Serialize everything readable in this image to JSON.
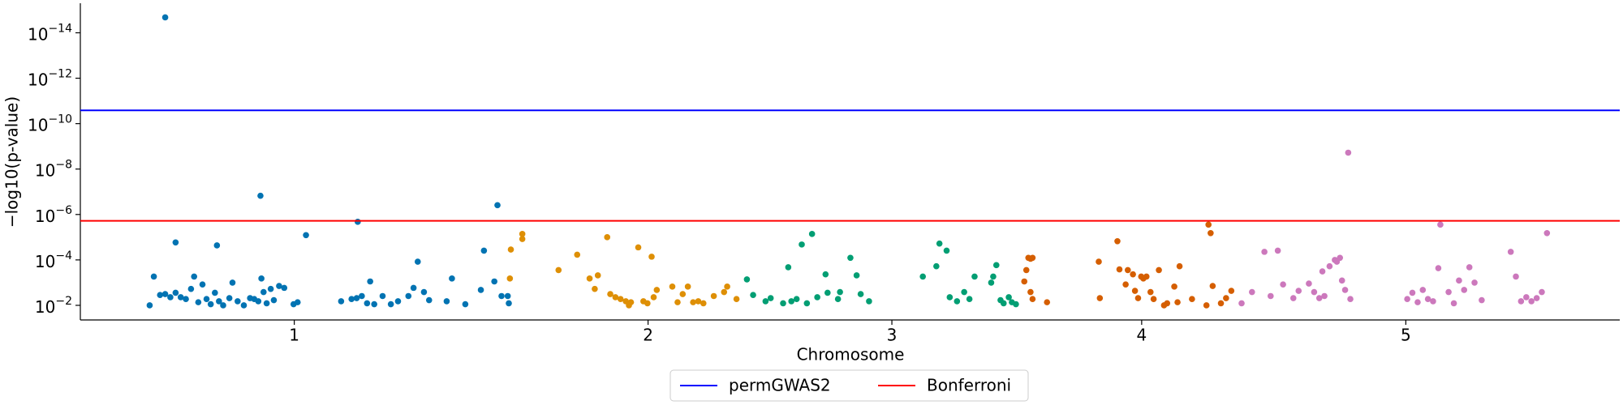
{
  "chart_data": {
    "type": "scatter",
    "x_label": "Chromosome",
    "y_label": "−log10(p-value)",
    "y_scale": "log",
    "y_inverted": true,
    "grid": false,
    "legend": "below",
    "xlim": [
      -5.8,
      123.0
    ],
    "ylim": [
      0.044,
      5e-16
    ],
    "xticks": [
      {
        "value": 12.1,
        "label": "1"
      },
      {
        "value": 41.7,
        "label": "2"
      },
      {
        "value": 62.1,
        "label": "3"
      },
      {
        "value": 83.0,
        "label": "4"
      },
      {
        "value": 105.1,
        "label": "5"
      }
    ],
    "yticks": [
      {
        "value": 0.01,
        "label": "10−2"
      },
      {
        "value": 0.0001,
        "label": "10−4"
      },
      {
        "value": 1e-06,
        "label": "10−6"
      },
      {
        "value": 1e-08,
        "label": "10−8"
      },
      {
        "value": 1e-10,
        "label": "10−10"
      },
      {
        "value": 1e-12,
        "label": "10−12"
      },
      {
        "value": 1e-14,
        "label": "10−14"
      }
    ],
    "hlines": [
      {
        "name": "permGWAS2",
        "color": "#0000ff",
        "value": 2.6e-11
      },
      {
        "name": "Bonferroni",
        "color": "#ff0000",
        "value": 1.9e-06
      }
    ],
    "series": [
      {
        "color": "#0173b2",
        "x": [
          0,
          0.35,
          0.87,
          1.3,
          1.73,
          2.17,
          1.3,
          2.17,
          2.6,
          3.03,
          3.46,
          3.72,
          4.07,
          4.42,
          4.76,
          5.11,
          5.46,
          5.63,
          5.8,
          6.15,
          6.67,
          6.93,
          7.36,
          7.88,
          8.4,
          8.75,
          9.09,
          9.27,
          9.35,
          9.53,
          9.79,
          10.13,
          10.39,
          10.83,
          11.26,
          12.04,
          12.38,
          13.08,
          16.02,
          16.89,
          17.32,
          17.41,
          17.75,
          18.19,
          18.45,
          18.79,
          19.49,
          20.18,
          20.78,
          21.65,
          22.08,
          22.43,
          22.95,
          23.38,
          24.85,
          25.29,
          26.41,
          27.71,
          27.97,
          28.84,
          29.1,
          29.44,
          30.05,
          29.96
        ],
        "values": [
          0.01,
          0.00054,
          0.0035,
          0.0032,
          0.0044,
          0.0028,
          2.1e-15,
          1.7e-05,
          0.0044,
          0.0053,
          0.0019,
          0.00054,
          0.0073,
          0.0012,
          0.0053,
          0.0089,
          0.0028,
          2.3e-05,
          0.0066,
          0.01,
          0.0048,
          0.001,
          0.0066,
          0.01,
          0.0048,
          0.0053,
          0.0066,
          1.5e-07,
          0.00066,
          0.0026,
          0.0081,
          0.0019,
          0.0059,
          0.0014,
          0.0017,
          0.0089,
          0.0073,
          8.1e-06,
          0.0066,
          0.0053,
          0.0048,
          2.1e-06,
          0.0039,
          0.0081,
          0.00089,
          0.0089,
          0.0039,
          0.0089,
          0.0066,
          0.0039,
          0.0017,
          0.00012,
          0.0026,
          0.0059,
          0.0066,
          0.00066,
          0.0089,
          0.0021,
          3.9e-05,
          0.00089,
          3.9e-07,
          0.0039,
          0.0081,
          0.0039
        ]
      },
      {
        "color": "#de8f05",
        "x": [
          30.14,
          30.22,
          31.18,
          31.18,
          34.21,
          35.77,
          36.81,
          37.24,
          37.5,
          38.28,
          38.54,
          38.97,
          39.4,
          39.84,
          40.1,
          40.27,
          40.88,
          41.31,
          41.65,
          42.0,
          42.17,
          42.43,
          43.73,
          44.17,
          44.6,
          45.03,
          45.47,
          45.9,
          46.33,
          47.2,
          48.06,
          48.32,
          49.1
        ],
        "values": [
          0.00066,
          3.5e-05,
          1.2e-05,
          7.2e-06,
          0.00028,
          5.9e-05,
          0.00066,
          0.0019,
          0.00048,
          1e-05,
          0.0032,
          0.0044,
          0.0053,
          0.0066,
          0.01,
          0.0073,
          2.8e-05,
          0.0066,
          0.0081,
          7.2e-05,
          0.0044,
          0.0021,
          0.0015,
          0.0073,
          0.0032,
          0.0015,
          0.0073,
          0.0066,
          0.0081,
          0.0039,
          0.0026,
          0.0015,
          0.0053
        ]
      },
      {
        "color": "#029e73",
        "x": [
          49.97,
          50.49,
          51.53,
          51.96,
          53.0,
          53.43,
          53.69,
          54.13,
          54.56,
          55.42,
          54.99,
          55.86,
          56.55,
          56.72,
          57.59,
          57.76,
          58.63,
          59.15,
          59.49,
          60.19,
          64.69,
          65.82,
          66.08,
          66.68,
          66.94,
          67.55,
          68.15,
          68.59,
          69.02,
          70.41,
          70.58,
          70.84,
          71.19,
          71.45,
          71.88,
          72.14,
          72.48
        ],
        "values": [
          0.00072,
          0.0035,
          0.0066,
          0.0048,
          0.0081,
          0.00021,
          0.0066,
          0.0053,
          2.1e-05,
          7.2e-06,
          0.0081,
          0.0044,
          0.00043,
          0.0028,
          0.0053,
          0.0026,
          8.1e-05,
          0.00048,
          0.0032,
          0.0066,
          0.00054,
          0.00019,
          1.9e-05,
          3.9e-05,
          0.0044,
          0.0066,
          0.0026,
          0.0053,
          0.00054,
          0.001,
          0.00054,
          0.00017,
          0.0059,
          0.0081,
          0.0044,
          0.0073,
          0.0089
        ]
      },
      {
        "color": "#d55e00",
        "x": [
          73.18,
          73.35,
          73.52,
          73.7,
          73.87,
          73.7,
          73.87,
          75.08,
          79.41,
          79.5,
          80.97,
          81.14,
          81.66,
          81.84,
          82.27,
          82.44,
          82.7,
          82.96,
          83.14,
          83.4,
          83.74,
          84.0,
          84.44,
          84.87,
          85.13,
          85.73,
          86.0,
          86.17,
          87.21,
          88.42,
          88.59,
          88.77,
          88.94,
          89.63,
          90.06,
          90.5
        ],
        "values": [
          0.00089,
          0.00028,
          8.1e-05,
          8.9e-05,
          8.1e-05,
          0.0026,
          0.0053,
          0.0073,
          0.00012,
          0.0048,
          1.5e-05,
          0.00026,
          0.0012,
          0.00028,
          0.00043,
          0.0023,
          0.0048,
          0.00054,
          0.00066,
          0.00054,
          0.0026,
          0.0053,
          0.00028,
          0.01,
          0.0081,
          0.0015,
          0.0073,
          0.00019,
          0.0053,
          0.01,
          2.8e-06,
          6.6e-06,
          0.0014,
          0.0081,
          0.0048,
          0.0023
        ]
      },
      {
        "color": "#cc78bc",
        "x": [
          91.36,
          92.23,
          93.27,
          93.79,
          94.39,
          94.83,
          95.69,
          96.13,
          96.99,
          97.43,
          97.86,
          98.12,
          98.29,
          98.72,
          99.16,
          99.33,
          99.59,
          99.76,
          100.02,
          100.28,
          100.46,
          105.22,
          105.65,
          106.09,
          106.52,
          106.95,
          107.38,
          107.82,
          107.99,
          108.68,
          109.12,
          109.55,
          109.98,
          110.42,
          110.85,
          111.45,
          113.88,
          114.31,
          114.74,
          115.18,
          115.61,
          116.05,
          116.48,
          116.91
        ],
        "values": [
          0.0081,
          0.0026,
          4.4e-05,
          0.0039,
          3.9e-05,
          0.0012,
          0.0048,
          0.0023,
          0.0011,
          0.0026,
          0.0048,
          0.00032,
          0.0039,
          0.00019,
          0.0001,
          0.00012,
          8.1e-05,
          0.00081,
          0.0021,
          1.9e-09,
          0.0053,
          0.0053,
          0.0028,
          0.0073,
          0.0021,
          0.0053,
          0.0066,
          0.00023,
          2.8e-06,
          0.0026,
          0.0081,
          0.00081,
          0.0021,
          0.00021,
          0.001,
          0.0059,
          4.4e-05,
          0.00054,
          0.0066,
          0.0044,
          0.0066,
          0.0048,
          0.0026,
          6.6e-06
        ]
      }
    ]
  }
}
